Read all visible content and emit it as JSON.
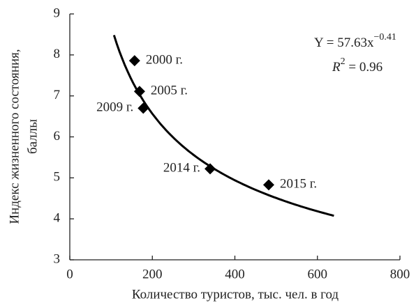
{
  "chart_data": {
    "type": "scatter",
    "xlabel": "Количество туристов, тыс. чел. в год",
    "ylabel": [
      "Индекс жизненного состояния,",
      "баллы"
    ],
    "x": [
      157,
      169,
      178,
      340,
      482
    ],
    "values": [
      7.86,
      7.11,
      6.7,
      5.22,
      4.83
    ],
    "labels": [
      "2000 г.",
      "2005 г.",
      "2009 г.",
      "2014 г.",
      "2015 г."
    ],
    "color": "#000000",
    "xlim": [
      0,
      800
    ],
    "xticks": [
      0,
      200,
      400,
      600,
      800
    ],
    "ylim": [
      3,
      9
    ],
    "yticks": [
      3,
      4,
      5,
      6,
      7,
      8,
      9
    ],
    "grid": false,
    "fit": {
      "a": 57.63,
      "b": -0.41,
      "x_range": [
        107,
        640
      ]
    },
    "annotation": {
      "equation": "Y = 57.63x",
      "exponent": "−0.41",
      "r": "R",
      "r_power": "2",
      "r_value": " = 0.96"
    }
  }
}
